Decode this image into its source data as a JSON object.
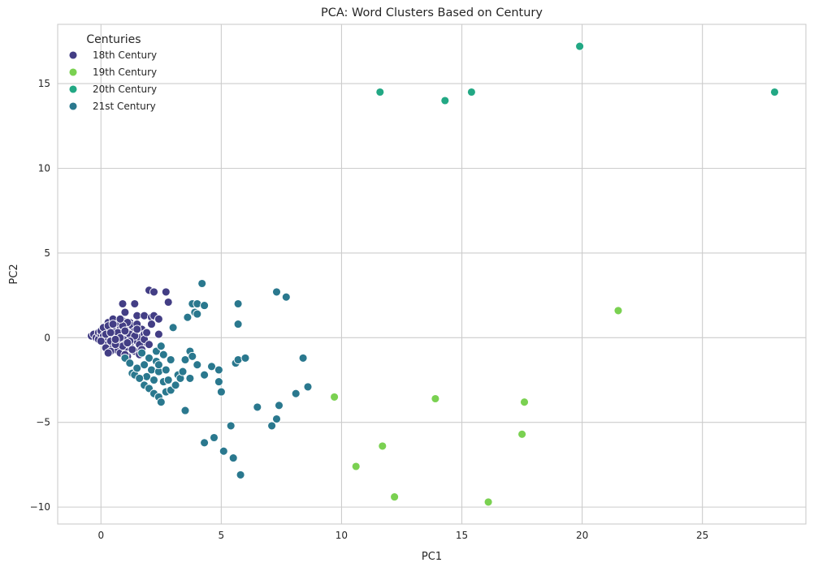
{
  "chart_data": {
    "type": "scatter",
    "title": "PCA: Word Clusters Based on Century",
    "xlabel": "PC1",
    "ylabel": "PC2",
    "xlim": [
      -1.8,
      29.3
    ],
    "ylim": [
      -11.0,
      18.5
    ],
    "xticks": [
      0,
      5,
      10,
      15,
      20,
      25
    ],
    "yticks": [
      -10,
      -5,
      0,
      5,
      10,
      15
    ],
    "grid": true,
    "legend": {
      "title": "Centuries",
      "position": "top-left"
    },
    "series": [
      {
        "name": "18th Century",
        "color": "#433e85",
        "points": [
          [
            -0.4,
            0.1
          ],
          [
            -0.3,
            0.2
          ],
          [
            -0.2,
            0.0
          ],
          [
            -0.1,
            0.3
          ],
          [
            -0.1,
            -0.1
          ],
          [
            0.0,
            0.2
          ],
          [
            0.0,
            0.4
          ],
          [
            0.1,
            -0.2
          ],
          [
            0.1,
            0.1
          ],
          [
            0.2,
            0.5
          ],
          [
            0.2,
            -0.3
          ],
          [
            0.3,
            0.0
          ],
          [
            0.3,
            0.3
          ],
          [
            0.3,
            0.9
          ],
          [
            0.4,
            -0.5
          ],
          [
            0.4,
            0.6
          ],
          [
            0.5,
            0.2
          ],
          [
            0.5,
            -0.1
          ],
          [
            0.5,
            1.1
          ],
          [
            0.6,
            -0.7
          ],
          [
            0.6,
            0.4
          ],
          [
            0.7,
            0.0
          ],
          [
            0.7,
            0.8
          ],
          [
            0.8,
            -0.3
          ],
          [
            0.8,
            0.5
          ],
          [
            0.8,
            -0.9
          ],
          [
            0.9,
            0.2
          ],
          [
            0.9,
            1.0
          ],
          [
            1.0,
            -0.1
          ],
          [
            1.0,
            0.6
          ],
          [
            1.0,
            -0.6
          ],
          [
            1.1,
            0.3
          ],
          [
            1.1,
            -1.1
          ],
          [
            1.2,
            0.9
          ],
          [
            1.2,
            -0.4
          ],
          [
            1.3,
            0.1
          ],
          [
            1.3,
            0.7
          ],
          [
            1.4,
            -0.8
          ],
          [
            1.4,
            0.4
          ],
          [
            1.5,
            -0.2
          ],
          [
            1.5,
            1.3
          ],
          [
            1.6,
            0.0
          ],
          [
            1.6,
            -1.0
          ],
          [
            1.7,
            0.5
          ],
          [
            1.7,
            -0.5
          ],
          [
            1.8,
            0.2
          ],
          [
            1.9,
            -0.3
          ],
          [
            0.2,
            -0.6
          ],
          [
            0.4,
            -0.2
          ],
          [
            0.6,
            0.1
          ],
          [
            0.9,
            -0.5
          ],
          [
            1.1,
            0.9
          ],
          [
            1.3,
            -0.7
          ],
          [
            1.5,
            0.8
          ],
          [
            1.6,
            -0.4
          ],
          [
            1.8,
            -0.1
          ],
          [
            0.0,
            -0.2
          ],
          [
            0.1,
            0.6
          ],
          [
            0.3,
            0.7
          ],
          [
            0.7,
            0.3
          ],
          [
            0.9,
            0.7
          ],
          [
            1.2,
            0.2
          ],
          [
            1.4,
            0.1
          ],
          [
            0.5,
            0.8
          ],
          [
            0.8,
            1.1
          ],
          [
            0.4,
            -0.8
          ],
          [
            1.0,
            0.4
          ],
          [
            1.2,
            -0.2
          ],
          [
            1.5,
            0.5
          ],
          [
            1.7,
            -0.7
          ],
          [
            1.9,
            0.3
          ],
          [
            2.0,
            -0.4
          ],
          [
            0.6,
            -0.4
          ],
          [
            0.3,
            -0.9
          ],
          [
            1.0,
            -1.0
          ],
          [
            0.8,
            0.0
          ],
          [
            0.2,
            0.2
          ],
          [
            0.4,
            0.3
          ],
          [
            0.6,
            -0.1
          ],
          [
            1.1,
            -0.3
          ],
          [
            0.9,
            2.0
          ],
          [
            1.4,
            2.0
          ],
          [
            1.0,
            1.5
          ],
          [
            1.8,
            1.3
          ],
          [
            2.0,
            2.8
          ],
          [
            2.2,
            2.7
          ],
          [
            2.7,
            2.7
          ],
          [
            2.8,
            2.1
          ],
          [
            2.1,
            1.2
          ],
          [
            2.2,
            1.3
          ],
          [
            2.4,
            1.1
          ],
          [
            2.1,
            0.8
          ],
          [
            2.4,
            0.2
          ]
        ]
      },
      {
        "name": "19th Century",
        "color": "#7ad151",
        "points": [
          [
            9.7,
            -3.5
          ],
          [
            10.6,
            -7.6
          ],
          [
            11.7,
            -6.4
          ],
          [
            12.2,
            -9.4
          ],
          [
            13.9,
            -3.6
          ],
          [
            16.1,
            -9.7
          ],
          [
            17.5,
            -5.7
          ],
          [
            17.6,
            -3.8
          ],
          [
            21.5,
            1.6
          ]
        ]
      },
      {
        "name": "20th Century",
        "color": "#22a884",
        "points": [
          [
            11.6,
            14.5
          ],
          [
            14.3,
            14.0
          ],
          [
            15.4,
            14.5
          ],
          [
            19.9,
            17.2
          ],
          [
            28.0,
            14.5
          ]
        ]
      },
      {
        "name": "21st Century",
        "color": "#2a788e",
        "points": [
          [
            1.0,
            -1.2
          ],
          [
            1.2,
            -1.5
          ],
          [
            1.3,
            -2.1
          ],
          [
            1.4,
            -2.2
          ],
          [
            1.5,
            -1.8
          ],
          [
            1.7,
            -0.9
          ],
          [
            1.8,
            -1.6
          ],
          [
            1.8,
            -2.8
          ],
          [
            1.9,
            -2.3
          ],
          [
            2.0,
            -1.2
          ],
          [
            2.0,
            -3.0
          ],
          [
            2.1,
            -1.9
          ],
          [
            2.2,
            -3.3
          ],
          [
            2.2,
            -2.5
          ],
          [
            2.3,
            -0.8
          ],
          [
            2.3,
            -1.4
          ],
          [
            2.4,
            -3.5
          ],
          [
            2.4,
            -2.0
          ],
          [
            2.5,
            -3.8
          ],
          [
            2.5,
            -0.5
          ],
          [
            2.6,
            -2.6
          ],
          [
            2.6,
            -1.0
          ],
          [
            2.7,
            -3.2
          ],
          [
            2.7,
            -1.9
          ],
          [
            2.8,
            -2.5
          ],
          [
            2.9,
            -3.1
          ],
          [
            3.0,
            0.6
          ],
          [
            3.2,
            -2.2
          ],
          [
            3.3,
            -2.4
          ],
          [
            3.5,
            -1.3
          ],
          [
            3.5,
            -4.3
          ],
          [
            3.6,
            1.2
          ],
          [
            3.7,
            -2.4
          ],
          [
            3.7,
            -0.8
          ],
          [
            3.8,
            -1.1
          ],
          [
            3.8,
            2.0
          ],
          [
            3.9,
            1.5
          ],
          [
            4.0,
            2.0
          ],
          [
            4.0,
            -1.6
          ],
          [
            4.0,
            1.4
          ],
          [
            4.2,
            3.2
          ],
          [
            4.3,
            -2.2
          ],
          [
            4.3,
            1.9
          ],
          [
            4.3,
            -6.2
          ],
          [
            4.6,
            -1.7
          ],
          [
            4.7,
            -5.9
          ],
          [
            4.9,
            -1.9
          ],
          [
            4.9,
            -2.6
          ],
          [
            5.0,
            -3.2
          ],
          [
            5.1,
            -6.7
          ],
          [
            5.4,
            -5.2
          ],
          [
            5.5,
            -7.1
          ],
          [
            5.6,
            -1.5
          ],
          [
            5.7,
            2.0
          ],
          [
            5.7,
            -1.3
          ],
          [
            5.7,
            0.8
          ],
          [
            5.8,
            -8.1
          ],
          [
            6.0,
            -1.2
          ],
          [
            6.5,
            -4.1
          ],
          [
            7.1,
            -5.2
          ],
          [
            7.3,
            2.7
          ],
          [
            7.3,
            -4.8
          ],
          [
            7.4,
            -4.0
          ],
          [
            7.7,
            2.4
          ],
          [
            8.1,
            -3.3
          ],
          [
            8.4,
            -1.2
          ],
          [
            8.6,
            -2.9
          ],
          [
            3.1,
            -2.8
          ],
          [
            2.9,
            -1.3
          ],
          [
            1.6,
            -2.4
          ],
          [
            2.4,
            -1.6
          ],
          [
            3.4,
            -2.0
          ]
        ]
      }
    ]
  }
}
